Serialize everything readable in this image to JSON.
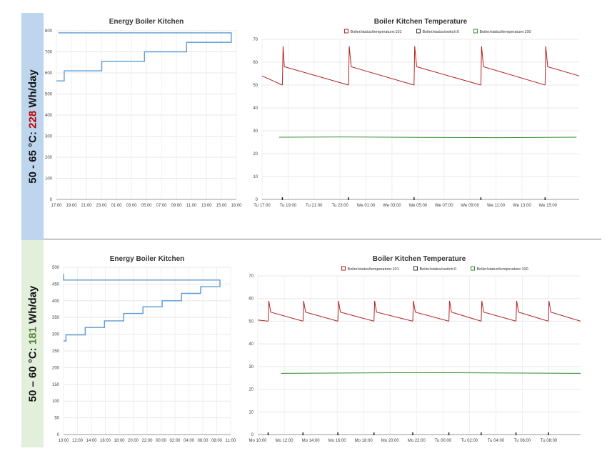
{
  "panels": [
    {
      "label_prefix": "50 - 65 °C: ",
      "label_value": "228",
      "label_suffix": " Wh/day",
      "label_color": "#c00000",
      "side_color": "#bdd6ee"
    },
    {
      "label_prefix": "50 – 60 °C: ",
      "label_value": "181",
      "label_suffix": " Wh/day",
      "label_color": "#548235",
      "side_color": "#e2efda"
    }
  ],
  "chart_data": [
    {
      "type": "line",
      "title": "Energy Boiler Kitchen",
      "x_ticks": [
        "17:00",
        "19:00",
        "21:00",
        "23:00",
        "01:00",
        "03:00",
        "05:00",
        "07:00",
        "09:00",
        "11:00",
        "13:00",
        "15:00",
        "18:00"
      ],
      "ylim": [
        0,
        800
      ],
      "y_ticks": [
        0,
        100,
        200,
        300,
        400,
        500,
        600,
        700,
        800
      ],
      "grid": true,
      "color": "#5b9bd5",
      "steps": {
        "x": [
          "17:00",
          "18:00",
          "18:00",
          "22:50",
          "22:50",
          "04:20",
          "04:20",
          "09:45",
          "09:45",
          "15:30",
          "15:30",
          "17:15"
        ],
        "y": [
          562,
          562,
          610,
          610,
          655,
          655,
          700,
          700,
          745,
          745,
          790,
          790
        ]
      }
    },
    {
      "type": "line",
      "title": "Boiler Kitchen Temperature",
      "legend": [
        "Boiler/status/temperature:101",
        "Boiler/status/switch:0",
        "Boiler/status/temperature:100"
      ],
      "legend_position": "top",
      "x_ticks": [
        "Tu 17:00",
        "Tu 19:00",
        "Tu 21:00",
        "Tu 23:00",
        "We 01:00",
        "We 03:00",
        "We 05:00",
        "We 07:00",
        "We 09:00",
        "We 11:00",
        "We 13:00",
        "We 15:00"
      ],
      "ylim": [
        0,
        70
      ],
      "y_ticks": [
        0,
        10,
        20,
        30,
        40,
        50,
        60,
        70
      ],
      "grid": true,
      "series": [
        {
          "name": "Boiler/status/temperature:101",
          "color": "#b22222",
          "cycles": [
            {
              "t": [
                0,
                1.55
              ],
              "v": [
                54,
                50
              ]
            },
            {
              "t": [
                1.55,
                1.6,
                1.7,
                6.6
              ],
              "v": [
                50,
                67,
                58,
                50
              ]
            },
            {
              "t": [
                6.6,
                6.65,
                6.8,
                11.6
              ],
              "v": [
                50,
                67,
                58,
                50
              ]
            },
            {
              "t": [
                11.6,
                11.65,
                11.8,
                16.7
              ],
              "v": [
                50,
                67,
                58,
                50
              ]
            },
            {
              "t": [
                16.7,
                16.75,
                16.9,
                21.6
              ],
              "v": [
                50,
                67,
                58,
                50
              ]
            },
            {
              "t": [
                21.6,
                21.65,
                21.8,
                24.2
              ],
              "v": [
                50,
                67,
                58,
                54
              ]
            }
          ]
        },
        {
          "name": "Boiler/status/temperature:100",
          "color": "#2e8b2e",
          "t": [
            1.3,
            6,
            12,
            18,
            24
          ],
          "v": [
            27.2,
            27.3,
            27.1,
            27.0,
            27.2
          ]
        }
      ],
      "switch_events": [
        1.55,
        6.6,
        11.6,
        16.7,
        21.6
      ]
    },
    {
      "type": "line",
      "title": "Energy Boiler Kitchen",
      "x_ticks": [
        "10:00",
        "12:00",
        "14:00",
        "16:00",
        "18:00",
        "20:00",
        "22:00",
        "00:00",
        "02:00",
        "04:00",
        "06:00",
        "08:00",
        "11:00"
      ],
      "ylim": [
        0,
        500
      ],
      "y_ticks": [
        0,
        50,
        100,
        150,
        200,
        250,
        300,
        350,
        400,
        450,
        500
      ],
      "grid": true,
      "color": "#5b9bd5",
      "steps": {
        "x": [
          "10:00",
          "10:20",
          "10:20",
          "13:00",
          "13:00",
          "15:40",
          "15:40",
          "18:20",
          "18:20",
          "21:00",
          "21:00",
          "23:40",
          "23:40",
          "02:20",
          "02:20",
          "05:00",
          "05:00",
          "07:40",
          "07:40",
          "10:00",
          "10:00"
        ],
        "y": [
          280,
          280,
          298,
          298,
          320,
          320,
          340,
          340,
          362,
          362,
          382,
          382,
          400,
          400,
          422,
          422,
          442,
          442,
          462,
          462,
          480
        ]
      }
    },
    {
      "type": "line",
      "title": "Boiler Kitchen Temperature",
      "legend": [
        "Boiler/status/temperature:101",
        "Boiler/status/switch:0",
        "Boiler/status/temperature:100"
      ],
      "legend_position": "top",
      "x_ticks": [
        "Mo 10:00",
        "Mo 12:00",
        "Mo 14:00",
        "Mo 16:00",
        "Mo 18:00",
        "Mo 20:00",
        "Mo 22:00",
        "Tu 00:00",
        "Tu 02:00",
        "Tu 04:00",
        "Tu 06:00",
        "Tu 08:00"
      ],
      "ylim": [
        0,
        70
      ],
      "y_ticks": [
        0,
        10,
        20,
        30,
        40,
        50,
        60,
        70
      ],
      "grid": true,
      "series": [
        {
          "name": "Boiler/status/temperature:101",
          "color": "#b22222",
          "cycles": [
            {
              "t": [
                0,
                0.8
              ],
              "v": [
                50.5,
                50
              ]
            },
            {
              "t": [
                0.8,
                0.85,
                1.0,
                3.5
              ],
              "v": [
                50,
                59,
                54,
                50
              ]
            },
            {
              "t": [
                3.5,
                3.55,
                3.7,
                6.2
              ],
              "v": [
                50,
                59,
                54,
                50
              ]
            },
            {
              "t": [
                6.2,
                6.25,
                6.4,
                9.0
              ],
              "v": [
                50,
                59,
                54,
                50
              ]
            },
            {
              "t": [
                9.0,
                9.05,
                9.2,
                12.0
              ],
              "v": [
                50,
                59,
                54,
                50
              ]
            },
            {
              "t": [
                12.0,
                12.05,
                12.2,
                14.8
              ],
              "v": [
                50,
                59,
                54,
                50
              ]
            },
            {
              "t": [
                14.8,
                14.85,
                15.0,
                17.3
              ],
              "v": [
                50,
                59,
                54,
                50
              ]
            },
            {
              "t": [
                17.3,
                17.35,
                17.5,
                20.0
              ],
              "v": [
                50,
                59,
                54,
                50
              ]
            },
            {
              "t": [
                20.0,
                20.05,
                20.2,
                22.5
              ],
              "v": [
                50,
                59,
                54,
                50
              ]
            },
            {
              "t": [
                22.5,
                22.55,
                22.7,
                25.0
              ],
              "v": [
                50,
                59,
                54,
                50
              ]
            }
          ]
        },
        {
          "name": "Boiler/status/temperature:100",
          "color": "#2e8b2e",
          "t": [
            1.8,
            8,
            12,
            18,
            25
          ],
          "v": [
            27.0,
            27.2,
            27.3,
            27.2,
            27.0
          ]
        }
      ],
      "switch_events": [
        0.8,
        3.5,
        6.2,
        9.0,
        12.0,
        14.8,
        17.3,
        20.0,
        22.5
      ]
    }
  ]
}
